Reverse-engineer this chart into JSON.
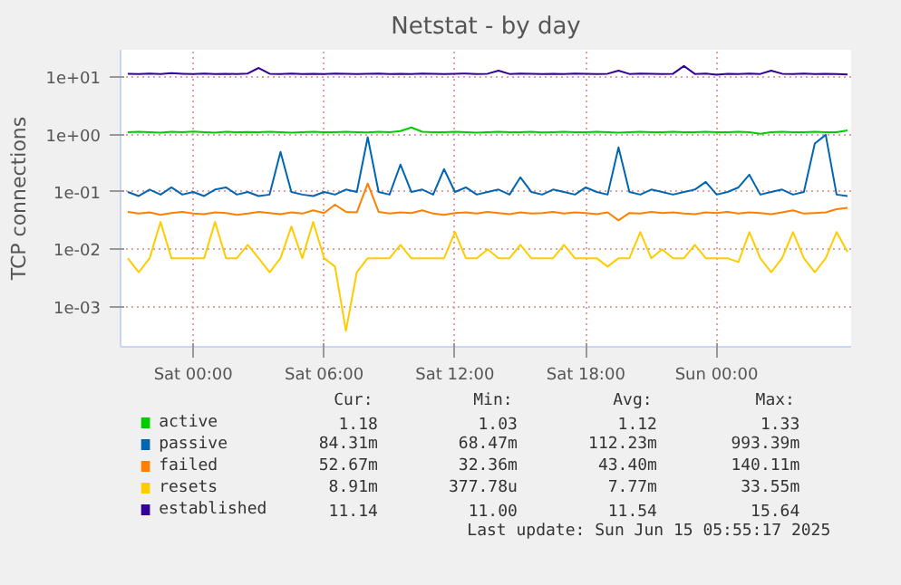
{
  "chart_data": {
    "type": "line",
    "title": "Netstat - by day",
    "ylabel": "TCP connections",
    "log": "y",
    "grid": true,
    "legend": "bottom",
    "xlim": [
      "2025-06-13T20:40",
      "2025-06-15T06:10"
    ],
    "xticks": [
      {
        "value": "2025-06-14T00:00",
        "label": "Sat 00:00"
      },
      {
        "value": "2025-06-14T06:00",
        "label": "Sat 06:00"
      },
      {
        "value": "2025-06-14T12:00",
        "label": "Sat 12:00"
      },
      {
        "value": "2025-06-14T18:00",
        "label": "Sat 18:00"
      },
      {
        "value": "2025-06-15T00:00",
        "label": "Sun 00:00"
      }
    ],
    "ylim": [
      0.0002,
      30
    ],
    "yticks": [
      {
        "value": 0.001,
        "label": "1e-03"
      },
      {
        "value": 0.01,
        "label": "1e-02"
      },
      {
        "value": 0.1,
        "label": "1e-01"
      },
      {
        "value": 1,
        "label": "1e+00"
      },
      {
        "value": 10,
        "label": "1e+01"
      }
    ],
    "x": [
      "2025-06-13T21:00",
      "2025-06-13T21:30",
      "2025-06-13T22:00",
      "2025-06-13T22:30",
      "2025-06-13T23:00",
      "2025-06-13T23:30",
      "2025-06-14T00:00",
      "2025-06-14T00:30",
      "2025-06-14T01:00",
      "2025-06-14T01:30",
      "2025-06-14T02:00",
      "2025-06-14T02:30",
      "2025-06-14T03:00",
      "2025-06-14T03:30",
      "2025-06-14T04:00",
      "2025-06-14T04:30",
      "2025-06-14T05:00",
      "2025-06-14T05:30",
      "2025-06-14T06:00",
      "2025-06-14T06:30",
      "2025-06-14T07:00",
      "2025-06-14T07:30",
      "2025-06-14T08:00",
      "2025-06-14T08:30",
      "2025-06-14T09:00",
      "2025-06-14T09:30",
      "2025-06-14T10:00",
      "2025-06-14T10:30",
      "2025-06-14T11:00",
      "2025-06-14T11:30",
      "2025-06-14T12:00",
      "2025-06-14T12:30",
      "2025-06-14T13:00",
      "2025-06-14T13:30",
      "2025-06-14T14:00",
      "2025-06-14T14:30",
      "2025-06-14T15:00",
      "2025-06-14T15:30",
      "2025-06-14T16:00",
      "2025-06-14T16:30",
      "2025-06-14T17:00",
      "2025-06-14T17:30",
      "2025-06-14T18:00",
      "2025-06-14T18:30",
      "2025-06-14T19:00",
      "2025-06-14T19:30",
      "2025-06-14T20:00",
      "2025-06-14T20:30",
      "2025-06-14T21:00",
      "2025-06-14T21:30",
      "2025-06-14T22:00",
      "2025-06-14T22:30",
      "2025-06-14T23:00",
      "2025-06-14T23:30",
      "2025-06-15T00:00",
      "2025-06-15T00:30",
      "2025-06-15T01:00",
      "2025-06-15T01:30",
      "2025-06-15T02:00",
      "2025-06-15T02:30",
      "2025-06-15T03:00",
      "2025-06-15T03:30",
      "2025-06-15T04:00",
      "2025-06-15T04:30",
      "2025-06-15T05:00",
      "2025-06-15T05:30",
      "2025-06-15T06:00"
    ],
    "series": [
      {
        "name": "active",
        "color": "#00cc00",
        "values": [
          1.1,
          1.12,
          1.1,
          1.08,
          1.12,
          1.1,
          1.13,
          1.1,
          1.08,
          1.12,
          1.1,
          1.11,
          1.1,
          1.12,
          1.1,
          1.08,
          1.1,
          1.12,
          1.1,
          1.1,
          1.12,
          1.1,
          1.09,
          1.12,
          1.1,
          1.15,
          1.33,
          1.12,
          1.1,
          1.1,
          1.12,
          1.1,
          1.08,
          1.1,
          1.12,
          1.1,
          1.1,
          1.12,
          1.09,
          1.1,
          1.12,
          1.1,
          1.1,
          1.12,
          1.1,
          1.08,
          1.1,
          1.12,
          1.1,
          1.1,
          1.12,
          1.1,
          1.1,
          1.12,
          1.1,
          1.1,
          1.12,
          1.1,
          1.03,
          1.1,
          1.12,
          1.1,
          1.1,
          1.12,
          1.1,
          1.1,
          1.18
        ]
      },
      {
        "name": "passive",
        "color": "#0066b3",
        "values": [
          0.1,
          0.085,
          0.11,
          0.09,
          0.12,
          0.09,
          0.1,
          0.085,
          0.11,
          0.12,
          0.09,
          0.1,
          0.085,
          0.09,
          0.5,
          0.1,
          0.09,
          0.085,
          0.1,
          0.09,
          0.11,
          0.1,
          0.9,
          0.1,
          0.09,
          0.3,
          0.1,
          0.11,
          0.09,
          0.25,
          0.1,
          0.12,
          0.09,
          0.1,
          0.11,
          0.09,
          0.18,
          0.1,
          0.09,
          0.11,
          0.1,
          0.09,
          0.12,
          0.1,
          0.09,
          0.6,
          0.1,
          0.09,
          0.11,
          0.1,
          0.09,
          0.1,
          0.11,
          0.15,
          0.09,
          0.1,
          0.12,
          0.2,
          0.09,
          0.1,
          0.11,
          0.09,
          0.1,
          0.7,
          0.99,
          0.09,
          0.085
        ]
      },
      {
        "name": "failed",
        "color": "#ff8000",
        "values": [
          0.045,
          0.042,
          0.044,
          0.04,
          0.043,
          0.045,
          0.042,
          0.041,
          0.044,
          0.043,
          0.04,
          0.042,
          0.045,
          0.043,
          0.041,
          0.044,
          0.042,
          0.048,
          0.043,
          0.06,
          0.045,
          0.044,
          0.14,
          0.045,
          0.042,
          0.044,
          0.043,
          0.048,
          0.042,
          0.04,
          0.043,
          0.044,
          0.042,
          0.045,
          0.043,
          0.041,
          0.044,
          0.042,
          0.043,
          0.045,
          0.042,
          0.044,
          0.043,
          0.041,
          0.044,
          0.032,
          0.043,
          0.042,
          0.045,
          0.043,
          0.044,
          0.042,
          0.041,
          0.044,
          0.043,
          0.045,
          0.042,
          0.044,
          0.043,
          0.041,
          0.044,
          0.048,
          0.042,
          0.043,
          0.044,
          0.05,
          0.053
        ]
      },
      {
        "name": "resets",
        "color": "#ffcc00",
        "values": [
          0.007,
          0.004,
          0.007,
          0.03,
          0.007,
          0.007,
          0.007,
          0.007,
          0.03,
          0.007,
          0.007,
          0.012,
          0.007,
          0.004,
          0.007,
          0.025,
          0.007,
          0.03,
          0.007,
          0.005,
          0.00038,
          0.004,
          0.007,
          0.007,
          0.007,
          0.012,
          0.007,
          0.007,
          0.007,
          0.007,
          0.02,
          0.007,
          0.007,
          0.01,
          0.007,
          0.007,
          0.012,
          0.007,
          0.007,
          0.007,
          0.012,
          0.007,
          0.007,
          0.007,
          0.005,
          0.007,
          0.007,
          0.02,
          0.007,
          0.01,
          0.007,
          0.007,
          0.012,
          0.007,
          0.007,
          0.007,
          0.006,
          0.02,
          0.007,
          0.004,
          0.007,
          0.02,
          0.007,
          0.004,
          0.007,
          0.02,
          0.009
        ]
      },
      {
        "name": "established",
        "color": "#330099",
        "values": [
          11.5,
          11.3,
          11.6,
          11.4,
          11.8,
          11.5,
          11.3,
          11.6,
          11.4,
          11.5,
          11.3,
          11.6,
          14.5,
          11.5,
          11.4,
          11.6,
          11.3,
          11.5,
          11.4,
          11.6,
          11.5,
          11.3,
          11.5,
          11.6,
          11.4,
          11.5,
          11.3,
          11.6,
          11.5,
          11.4,
          11.5,
          11.6,
          11.3,
          11.5,
          13.0,
          11.4,
          11.6,
          11.5,
          11.3,
          11.5,
          11.4,
          11.6,
          11.5,
          11.3,
          11.5,
          13.0,
          11.4,
          11.6,
          11.5,
          11.3,
          11.5,
          15.64,
          11.4,
          11.6,
          11.0,
          11.5,
          11.3,
          11.6,
          11.4,
          13.0,
          11.5,
          11.3,
          11.6,
          11.4,
          11.5,
          11.3,
          11.14
        ]
      }
    ],
    "annotations": [
      "Cur:",
      "Min:",
      "Avg:",
      "Max:",
      "1.18",
      "1.03",
      "1.12",
      "1.33",
      "84.31m",
      "68.47m",
      "112.23m",
      "993.39m",
      "52.67m",
      "32.36m",
      "43.40m",
      "140.11m",
      "8.91m",
      "377.78u",
      "7.77m",
      "33.55m",
      "11.14",
      "11.00",
      "11.54",
      "15.64",
      "Last update: Sun Jun 15 05:55:17 2025"
    ]
  }
}
